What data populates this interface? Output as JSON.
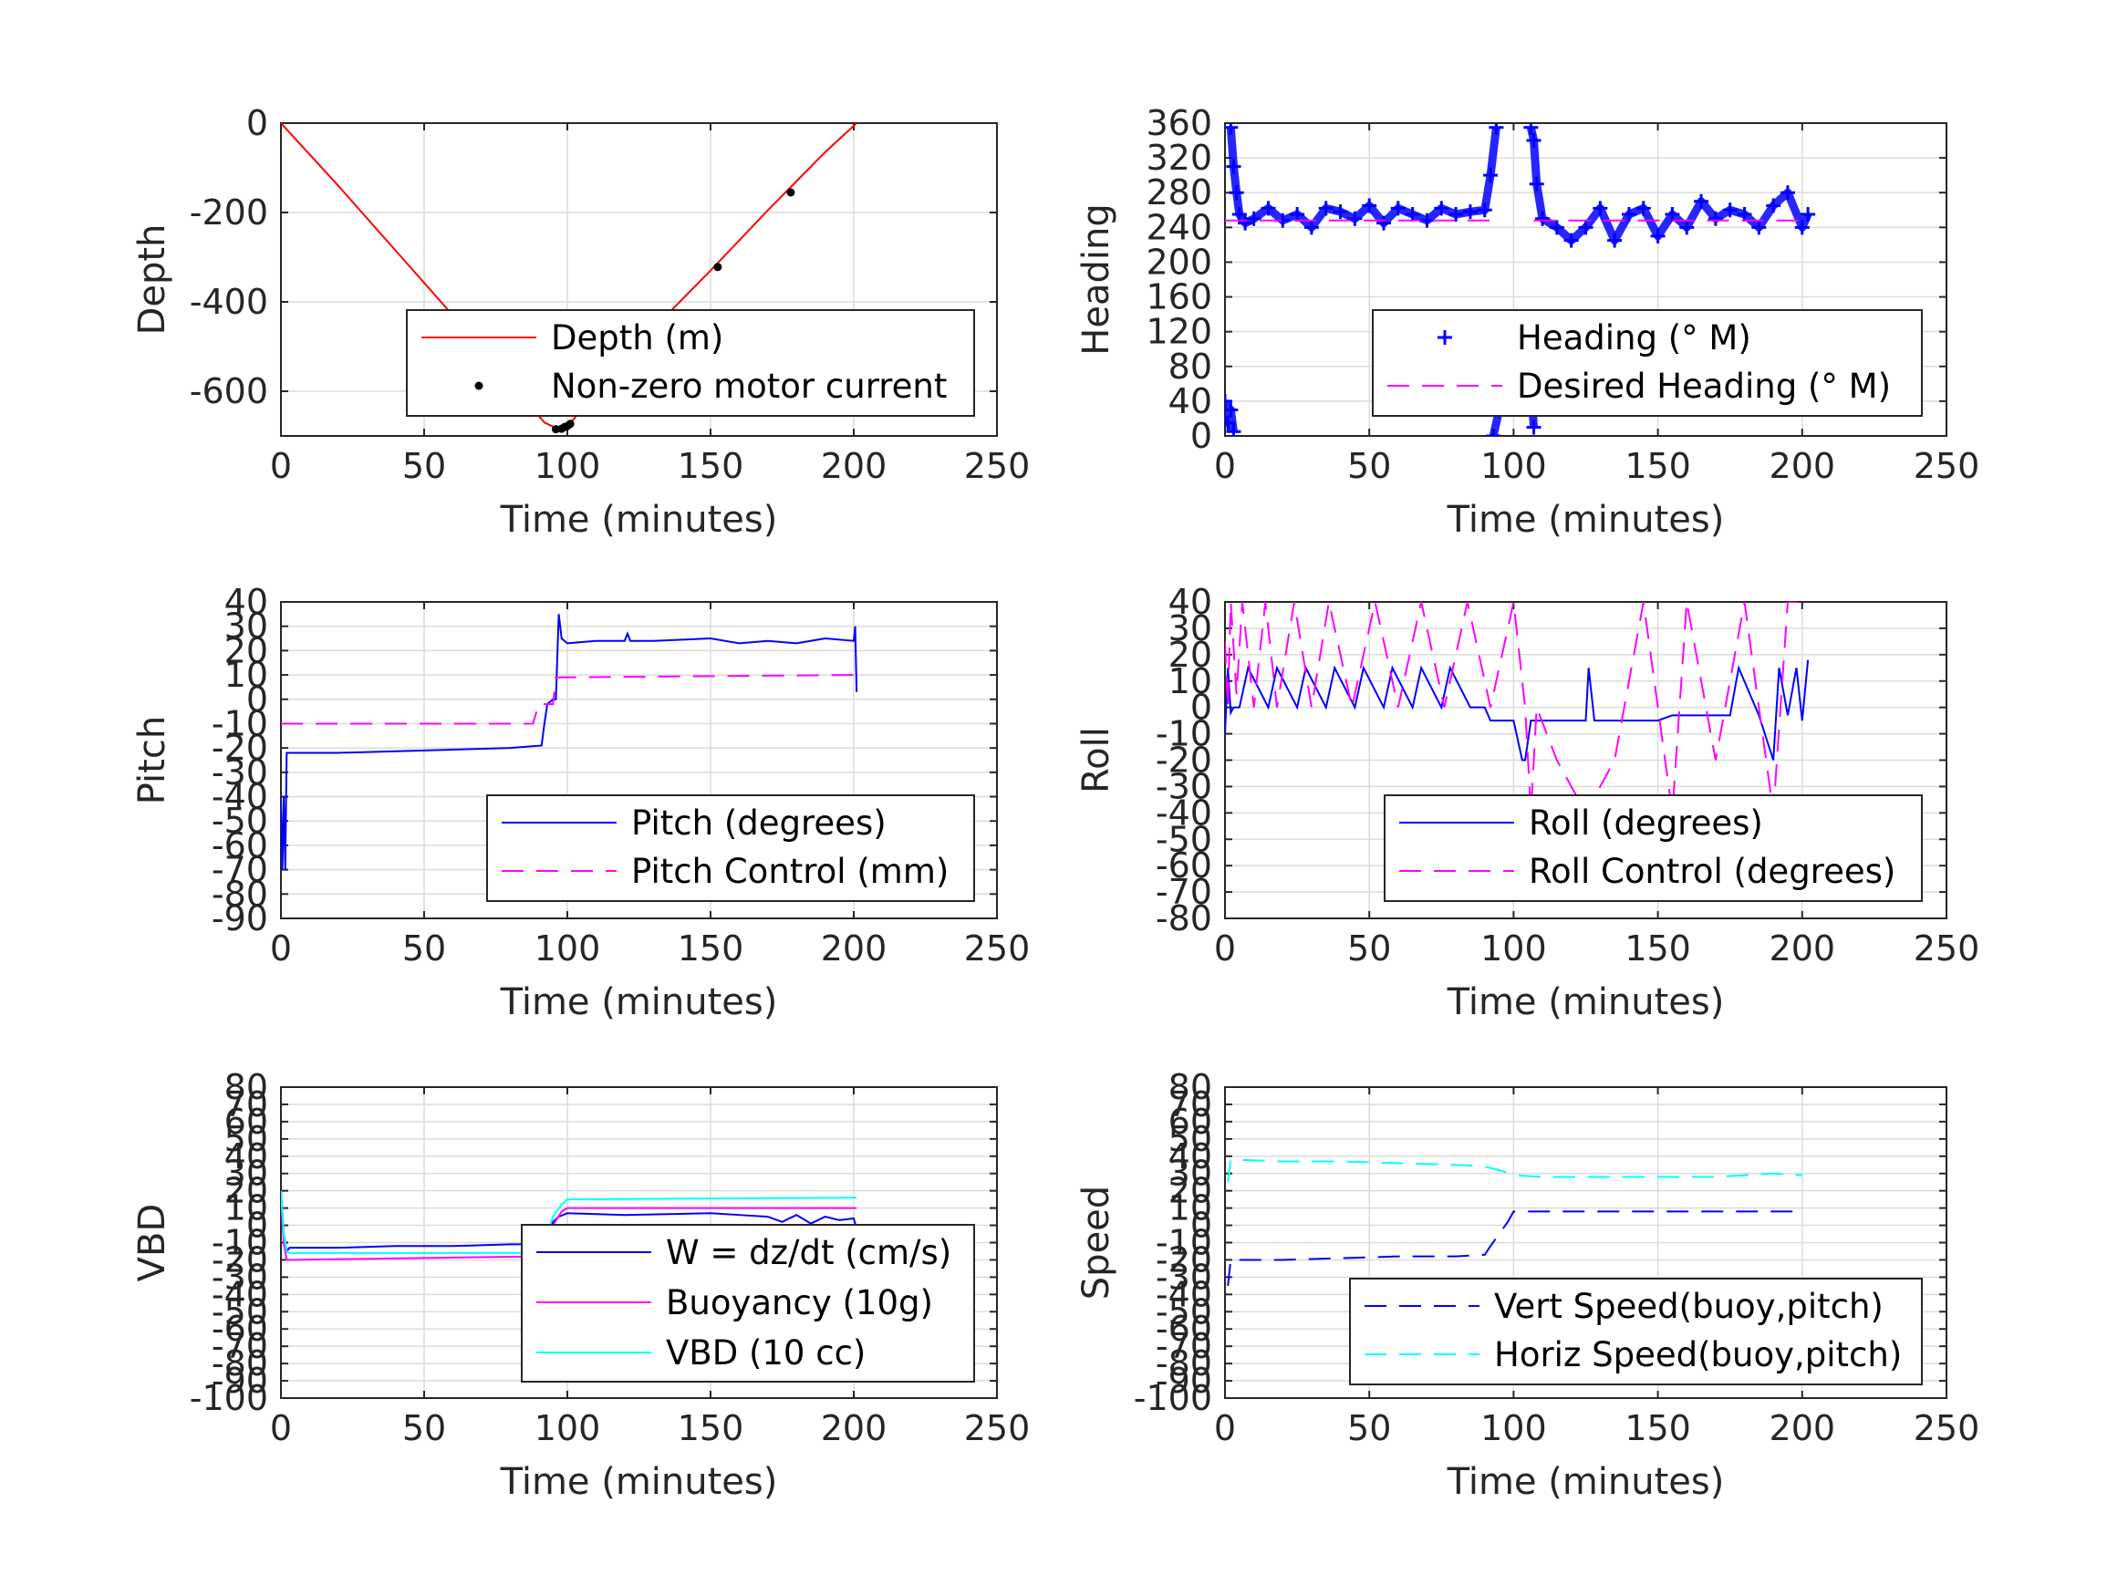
{
  "chart_data": [
    {
      "type": "line",
      "xlabel": "Time (minutes)",
      "ylabel": "Depth",
      "xlim": [
        0,
        250
      ],
      "ylim": [
        -700,
        0
      ],
      "xticks": [
        "0",
        "50",
        "100",
        "150",
        "200",
        "250"
      ],
      "yticks": [
        "-600",
        "-400",
        "-200",
        "0"
      ],
      "ytick_values": [
        -600,
        -400,
        -200,
        0
      ],
      "grid": true,
      "legend_position": "lower-right",
      "series": [
        {
          "name": "Depth (m)",
          "color": "#ff0000",
          "style": "solid",
          "x": [
            0,
            20,
            40,
            60,
            80,
            92,
            97,
            100,
            110,
            130,
            150,
            170,
            190,
            201
          ],
          "y": [
            0,
            -140,
            -285,
            -430,
            -580,
            -670,
            -685,
            -680,
            -600,
            -460,
            -330,
            -195,
            -65,
            0
          ]
        },
        {
          "name": "Non-zero motor current",
          "color": "#000000",
          "style": "dots",
          "x": [
            96,
            98,
            99,
            100,
            101,
            152.5,
            178
          ],
          "y": [
            -685,
            -684,
            -680,
            -678,
            -673,
            -322,
            -155
          ]
        }
      ]
    },
    {
      "type": "scatter",
      "xlabel": "Time (minutes)",
      "ylabel": "Heading",
      "xlim": [
        0,
        250
      ],
      "ylim": [
        0,
        360
      ],
      "xticks": [
        "0",
        "50",
        "100",
        "150",
        "200",
        "250"
      ],
      "yticks": [
        "0",
        "40",
        "80",
        "120",
        "160",
        "200",
        "240",
        "280",
        "320",
        "360"
      ],
      "ytick_values": [
        0,
        40,
        80,
        120,
        160,
        200,
        240,
        280,
        320,
        360
      ],
      "grid": true,
      "legend_position": "lower-right",
      "series": [
        {
          "name": "Heading (° M)",
          "color": "#0000ff",
          "style": "plus",
          "segments": [
            {
              "x": [
                0,
                1,
                2,
                3
              ],
              "y": [
                40,
                15,
                30,
                5
              ]
            },
            {
              "x": [
                2,
                3,
                4,
                5,
                7,
                10,
                15,
                20,
                25,
                30,
                35,
                40,
                45,
                50,
                55,
                60,
                65,
                70,
                75,
                80,
                85,
                90,
                92,
                94
              ],
              "y": [
                355,
                310,
                280,
                255,
                245,
                250,
                262,
                248,
                255,
                240,
                262,
                258,
                250,
                265,
                245,
                262,
                255,
                248,
                262,
                255,
                258,
                260,
                300,
                355
              ]
            },
            {
              "x": [
                93,
                95,
                97,
                100,
                103,
                106,
                107
              ],
              "y": [
                0,
                30,
                60,
                85,
                80,
                60,
                10
              ]
            },
            {
              "x": [
                106,
                107,
                108,
                110,
                115,
                120,
                125,
                130,
                135,
                140,
                145,
                150,
                155,
                160,
                165,
                170,
                175,
                180,
                185,
                190,
                195,
                200,
                202
              ],
              "y": [
                355,
                340,
                290,
                250,
                240,
                225,
                240,
                262,
                225,
                255,
                262,
                230,
                255,
                240,
                270,
                250,
                260,
                255,
                240,
                265,
                280,
                240,
                255
              ]
            }
          ]
        },
        {
          "name": "Desired Heading (° M)",
          "color": "#ff00ff",
          "style": "dashed",
          "segments": [
            {
              "x": [
                0,
                95
              ],
              "y": [
                248,
                248
              ]
            },
            {
              "x": [
                107,
                202
              ],
              "y": [
                248,
                248
              ]
            }
          ]
        }
      ]
    },
    {
      "type": "line",
      "xlabel": "Time (minutes)",
      "ylabel": "Pitch",
      "xlim": [
        0,
        250
      ],
      "ylim": [
        -90,
        40
      ],
      "xticks": [
        "0",
        "50",
        "100",
        "150",
        "200",
        "250"
      ],
      "yticks": [
        "-90",
        "-80",
        "-70",
        "-60",
        "-50",
        "-40",
        "-30",
        "-20",
        "-10",
        "0",
        "10",
        "20",
        "30",
        "40"
      ],
      "ytick_values": [
        -90,
        -80,
        -70,
        -60,
        -50,
        -40,
        -30,
        -20,
        -10,
        0,
        10,
        20,
        30,
        40
      ],
      "grid": true,
      "legend_position": "lower-right",
      "series": [
        {
          "name": "Pitch (degrees)",
          "color": "#0000ff",
          "style": "solid",
          "x": [
            0,
            0.5,
            1,
            1.5,
            2,
            3,
            20,
            50,
            80,
            91,
            92,
            93,
            95,
            96,
            97,
            98,
            100,
            110,
            120,
            121,
            122,
            130,
            150,
            160,
            170,
            180,
            190,
            200,
            200.5,
            201
          ],
          "y": [
            -40,
            -70,
            -40,
            -70,
            -22,
            -22,
            -22,
            -21,
            -20,
            -19,
            -10,
            -2,
            0,
            0,
            35,
            25,
            23,
            24,
            24,
            27,
            24,
            24,
            25,
            23,
            24,
            23,
            25,
            24,
            30,
            3
          ]
        },
        {
          "name": "Pitch Control (mm)",
          "color": "#ff00ff",
          "style": "dashed",
          "x": [
            0,
            88,
            90,
            95,
            96,
            97,
            201
          ],
          "y": [
            -10,
            -10,
            -2,
            -2,
            9,
            9,
            10
          ]
        }
      ]
    },
    {
      "type": "line",
      "xlabel": "Time (minutes)",
      "ylabel": "Roll",
      "xlim": [
        0,
        250
      ],
      "ylim": [
        -80,
        40
      ],
      "xticks": [
        "0",
        "50",
        "100",
        "150",
        "200",
        "250"
      ],
      "yticks": [
        "-80",
        "-70",
        "-60",
        "-50",
        "-40",
        "-30",
        "-20",
        "-10",
        "0",
        "10",
        "20",
        "30",
        "40"
      ],
      "ytick_values": [
        -80,
        -70,
        -60,
        -50,
        -40,
        -30,
        -20,
        -10,
        0,
        10,
        20,
        30,
        40
      ],
      "grid": true,
      "legend_position": "lower-right",
      "series": [
        {
          "name": "Roll (degrees)",
          "color": "#0000ff",
          "style": "solid",
          "x": [
            0,
            1,
            2,
            3,
            5,
            8,
            15,
            18,
            25,
            28,
            35,
            38,
            45,
            48,
            55,
            58,
            65,
            68,
            75,
            78,
            85,
            90,
            92,
            100,
            103,
            104,
            106,
            108,
            115,
            120,
            125,
            126,
            128,
            135,
            140,
            145,
            150,
            155,
            160,
            170,
            175,
            178,
            185,
            190,
            192,
            195,
            198,
            200,
            202
          ],
          "y": [
            -10,
            15,
            -2,
            0,
            0,
            15,
            0,
            15,
            0,
            15,
            0,
            15,
            0,
            15,
            0,
            15,
            0,
            15,
            0,
            15,
            0,
            0,
            -5,
            -5,
            -20,
            -20,
            -5,
            -5,
            -5,
            -5,
            -5,
            15,
            -5,
            -5,
            -5,
            -5,
            -5,
            -3,
            -3,
            -3,
            -3,
            15,
            -3,
            -20,
            15,
            -3,
            15,
            -5,
            18
          ]
        },
        {
          "name": "Roll Control (degrees)",
          "color": "#ff00ff",
          "style": "dashed",
          "x": [
            0,
            1,
            2,
            4,
            6,
            10,
            14,
            18,
            24,
            30,
            36,
            44,
            52,
            60,
            68,
            76,
            84,
            92,
            100,
            104,
            106,
            108,
            115,
            125,
            135,
            145,
            155,
            160,
            170,
            180,
            190,
            195,
            200,
            202
          ],
          "y": [
            25,
            0,
            40,
            5,
            40,
            0,
            40,
            0,
            40,
            0,
            40,
            0,
            40,
            0,
            40,
            0,
            40,
            0,
            40,
            0,
            -40,
            0,
            -20,
            -40,
            -20,
            40,
            -40,
            40,
            -20,
            40,
            -40,
            40,
            40,
            40
          ]
        }
      ]
    },
    {
      "type": "line",
      "xlabel": "Time (minutes)",
      "ylabel": "VBD",
      "xlim": [
        0,
        250
      ],
      "ylim": [
        -100,
        80
      ],
      "xticks": [
        "0",
        "50",
        "100",
        "150",
        "200",
        "250"
      ],
      "yticks": [
        "-100",
        "-90",
        "-80",
        "-70",
        "-60",
        "-50",
        "-40",
        "-30",
        "-20",
        "-10",
        "0",
        "10",
        "20",
        "30",
        "40",
        "50",
        "60",
        "70",
        "80"
      ],
      "ytick_values": [
        -100,
        -90,
        -80,
        -70,
        -60,
        -50,
        -40,
        -30,
        -20,
        -10,
        0,
        10,
        20,
        30,
        40,
        50,
        60,
        70,
        80
      ],
      "grid": true,
      "legend_position": "lower-right",
      "series": [
        {
          "name": "W = dz/dt (cm/s)",
          "color": "#0000ff",
          "style": "solid",
          "x": [
            0,
            1,
            2,
            3,
            5,
            20,
            40,
            60,
            80,
            90,
            92,
            95,
            97,
            100,
            120,
            150,
            160,
            170,
            175,
            180,
            185,
            190,
            195,
            200,
            201
          ],
          "y": [
            20,
            -5,
            -15,
            -13,
            -13,
            -13,
            -12,
            -12,
            -11,
            -11,
            -8,
            2,
            5,
            7,
            6,
            7,
            6,
            5,
            2,
            6,
            1,
            5,
            3,
            4,
            -2
          ]
        },
        {
          "name": "Buoyancy (10g)",
          "color": "#ff00ff",
          "style": "solid",
          "x": [
            0,
            1,
            2,
            3,
            90,
            92,
            95,
            98,
            100,
            201
          ],
          "y": [
            15,
            -10,
            -20,
            -20,
            -18,
            -14,
            0,
            8,
            10,
            10
          ]
        },
        {
          "name": "VBD (10 cc)",
          "color": "#00ffff",
          "style": "solid",
          "x": [
            0,
            1,
            2,
            3,
            90,
            92,
            95,
            98,
            100,
            201
          ],
          "y": [
            20,
            -5,
            -15,
            -16,
            -16,
            -10,
            5,
            12,
            15,
            16
          ]
        }
      ]
    },
    {
      "type": "line",
      "xlabel": "Time (minutes)",
      "ylabel": "Speed",
      "xlim": [
        0,
        250
      ],
      "ylim": [
        -100,
        80
      ],
      "xticks": [
        "0",
        "50",
        "100",
        "150",
        "200",
        "250"
      ],
      "yticks": [
        "-100",
        "-90",
        "-80",
        "-70",
        "-60",
        "-50",
        "-40",
        "-30",
        "-20",
        "-10",
        "0",
        "10",
        "20",
        "30",
        "40",
        "50",
        "60",
        "70",
        "80"
      ],
      "ytick_values": [
        -100,
        -90,
        -80,
        -70,
        -60,
        -50,
        -40,
        -30,
        -20,
        -10,
        0,
        10,
        20,
        30,
        40,
        50,
        60,
        70,
        80
      ],
      "grid": true,
      "legend_position": "lower-right",
      "series": [
        {
          "name": "Vert Speed(buoy,pitch)",
          "color": "#0000ff",
          "style": "dashed",
          "x": [
            1,
            2,
            3,
            20,
            40,
            60,
            80,
            90,
            92,
            95,
            98,
            100,
            120,
            140,
            160,
            180,
            190,
            200
          ],
          "y": [
            -35,
            -20,
            -20,
            -20,
            -19,
            -18,
            -18,
            -17,
            -12,
            -5,
            2,
            8,
            8,
            8,
            8,
            8,
            8,
            8
          ]
        },
        {
          "name": "Horiz Speed(buoy,pitch)",
          "color": "#00ffff",
          "style": "dashed",
          "x": [
            1,
            2,
            4,
            20,
            40,
            60,
            80,
            90,
            95,
            100,
            110,
            130,
            150,
            170,
            190,
            200
          ],
          "y": [
            25,
            38,
            38,
            37,
            37,
            36,
            35,
            34,
            32,
            29,
            28,
            28,
            28,
            28,
            30,
            29
          ]
        }
      ]
    }
  ]
}
